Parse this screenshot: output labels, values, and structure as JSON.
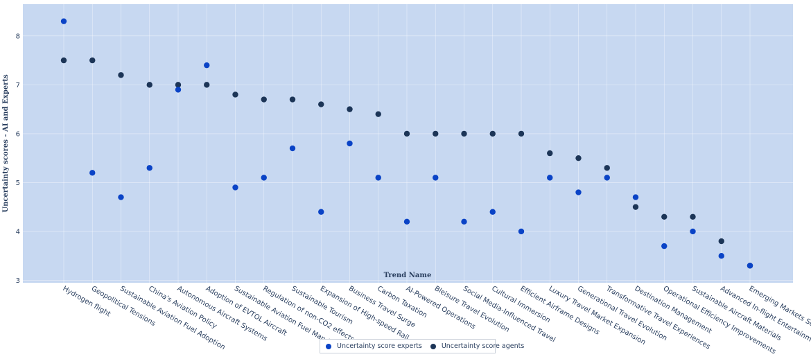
{
  "chart_data": {
    "type": "scatter",
    "title": "",
    "xlabel": "Trend Name",
    "ylabel": "Uncertainty scores - AI and Experts",
    "ylim": [
      2.95,
      8.65
    ],
    "yticks": [
      3,
      4,
      5,
      6,
      7,
      8
    ],
    "categories": [
      "Hydrogen flight",
      "Geopolitical Tensions",
      "Sustainable Aviation Fuel Adoption",
      "China's Aviation Policy",
      "Autonomous Aircraft Systems",
      "Adoption of EVTOL Aircraft",
      "Sustainable Aviation Fuel Mandates",
      "Regulation of non-CO2 effects",
      "Sustainable Tourism",
      "Expansion of High-speed Rail",
      "Business Travel Surge",
      "Carbon Taxation",
      "AI-Powered Operations",
      "Bleisure Travel Evolution",
      "Social Media-Influenced Travel",
      "Cultural Immersion",
      "Efficient Airframe Designs",
      "Luxury Travel Market Expansion",
      "Generational Travel Evolution",
      "Transformative Travel Experiences",
      "Destination Management",
      "Operational Efficiency Improvements",
      "Sustainable Aircraft Materials",
      "Advanced In-flight Entertainment",
      "Emerging Markets Surge"
    ],
    "series": [
      {
        "name": "Uncertainty score experts",
        "color": "#0a43c6",
        "values": [
          8.3,
          5.2,
          4.7,
          5.3,
          6.9,
          7.4,
          4.9,
          5.1,
          5.7,
          4.4,
          5.8,
          5.1,
          4.2,
          5.1,
          4.2,
          4.4,
          4.0,
          5.1,
          4.8,
          5.1,
          4.7,
          3.7,
          4.0,
          3.5,
          3.3
        ]
      },
      {
        "name": "Uncertainty score agents",
        "color": "#1c3557",
        "values": [
          7.5,
          7.5,
          7.2,
          7.0,
          7.0,
          7.0,
          6.8,
          6.7,
          6.7,
          6.6,
          6.5,
          6.4,
          6.0,
          6.0,
          6.0,
          6.0,
          6.0,
          5.6,
          5.5,
          5.3,
          4.5,
          4.3,
          4.3,
          3.8,
          3.3
        ]
      }
    ],
    "grid": true,
    "legend_position": "bottom-center",
    "plot_background": "#c7d8f1"
  }
}
